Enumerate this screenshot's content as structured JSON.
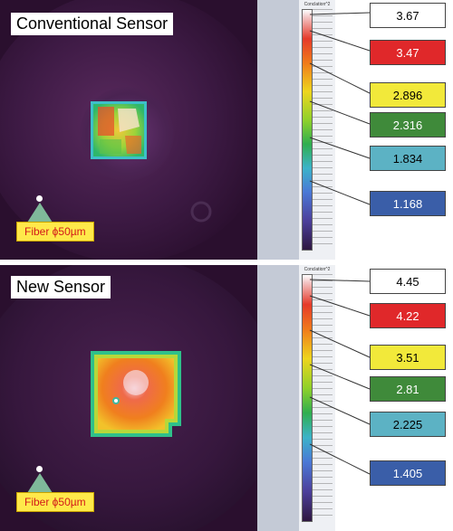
{
  "top": {
    "title": "Conventional Sensor",
    "fiber_label": "Fiber ϕ50µm",
    "scale_title": "Conclation^2",
    "callouts": [
      {
        "value": "3.67",
        "color": "#ffffff",
        "text_color": "#000000"
      },
      {
        "value": "3.47",
        "color": "#e0282a",
        "text_color": "#ffffff"
      },
      {
        "value": "2.896",
        "color": "#f2e93a",
        "text_color": "#000000"
      },
      {
        "value": "2.316",
        "color": "#3f8a3a",
        "text_color": "#ffffff"
      },
      {
        "value": "1.834",
        "color": "#5cb2c4",
        "text_color": "#000000"
      },
      {
        "value": "1.168",
        "color": "#3a5ea8",
        "text_color": "#ffffff"
      }
    ]
  },
  "bottom": {
    "title": "New Sensor",
    "fiber_label": "Fiber ϕ50µm",
    "scale_title": "Conclation^2",
    "callouts": [
      {
        "value": "4.45",
        "color": "#ffffff",
        "text_color": "#000000"
      },
      {
        "value": "4.22",
        "color": "#e0282a",
        "text_color": "#ffffff"
      },
      {
        "value": "3.51",
        "color": "#f2e93a",
        "text_color": "#000000"
      },
      {
        "value": "2.81",
        "color": "#3f8a3a",
        "text_color": "#ffffff"
      },
      {
        "value": "2.225",
        "color": "#5cb2c4",
        "text_color": "#000000"
      },
      {
        "value": "1.405",
        "color": "#3a5ea8",
        "text_color": "#ffffff"
      }
    ]
  }
}
